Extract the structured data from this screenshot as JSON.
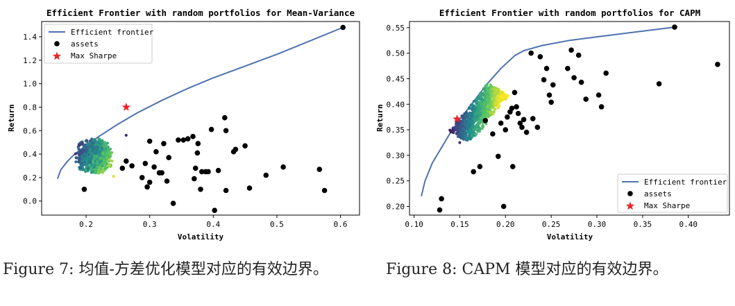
{
  "chart_data": [
    {
      "type": "scatter",
      "title": "Efficient Frontier with random portfolios for Mean-Variance",
      "xlabel": "Volatility",
      "ylabel": "Return",
      "xlim": [
        0.13,
        0.63
      ],
      "ylim": [
        -0.12,
        1.53
      ],
      "xticks": [
        "0.2",
        "0.3",
        "0.4",
        "0.5",
        "0.6"
      ],
      "yticks": [
        "0.0",
        "0.2",
        "0.4",
        "0.6",
        "0.8",
        "1.0",
        "1.2",
        "1.4"
      ],
      "legend_position": "top-left",
      "legend": [
        "Efficient frontier",
        "assets",
        "Max Sharpe"
      ],
      "frontier": {
        "name": "Efficient frontier",
        "color": "#4c72b0",
        "points": [
          [
            0.155,
            0.19
          ],
          [
            0.16,
            0.265
          ],
          [
            0.17,
            0.335
          ],
          [
            0.18,
            0.39
          ],
          [
            0.2,
            0.475
          ],
          [
            0.22,
            0.55
          ],
          [
            0.25,
            0.655
          ],
          [
            0.28,
            0.75
          ],
          [
            0.32,
            0.86
          ],
          [
            0.36,
            0.96
          ],
          [
            0.4,
            1.05
          ],
          [
            0.45,
            1.15
          ],
          [
            0.5,
            1.25
          ],
          [
            0.55,
            1.36
          ],
          [
            0.604,
            1.48
          ]
        ]
      },
      "cloud": {
        "name": "random portfolios",
        "xmin": 0.182,
        "xmax": 0.243,
        "ymin": 0.22,
        "ymax": 0.54,
        "extra": [
          [
            0.263,
            0.56
          ],
          [
            0.243,
            0.21
          ]
        ]
      },
      "max_sharpe": {
        "name": "Max Sharpe",
        "x": 0.263,
        "y": 0.8,
        "color": "#e8262a"
      },
      "assets": {
        "name": "assets",
        "points": [
          [
            0.604,
            1.48
          ],
          [
            0.197,
            0.1
          ],
          [
            0.257,
            0.28
          ],
          [
            0.263,
            0.34
          ],
          [
            0.272,
            0.3
          ],
          [
            0.288,
            0.2
          ],
          [
            0.293,
            0.32
          ],
          [
            0.296,
            0.12
          ],
          [
            0.3,
            0.16
          ],
          [
            0.3,
            0.51
          ],
          [
            0.307,
            0.29
          ],
          [
            0.31,
            0.42
          ],
          [
            0.315,
            0.24
          ],
          [
            0.319,
            0.24
          ],
          [
            0.322,
            0.49
          ],
          [
            0.327,
            0.17
          ],
          [
            0.33,
            0.37
          ],
          [
            0.337,
            -0.02
          ],
          [
            0.345,
            0.52
          ],
          [
            0.353,
            0.52
          ],
          [
            0.36,
            0.53
          ],
          [
            0.368,
            0.55
          ],
          [
            0.37,
            0.19
          ],
          [
            0.372,
            0.28
          ],
          [
            0.375,
            0.41
          ],
          [
            0.376,
            0.49
          ],
          [
            0.38,
            0.1
          ],
          [
            0.382,
            0.25
          ],
          [
            0.388,
            0.25
          ],
          [
            0.392,
            0.25
          ],
          [
            0.397,
            0.61
          ],
          [
            0.402,
            -0.08
          ],
          [
            0.408,
            0.26
          ],
          [
            0.418,
            0.71
          ],
          [
            0.42,
            0.6
          ],
          [
            0.42,
            0.09
          ],
          [
            0.432,
            0.42
          ],
          [
            0.435,
            0.44
          ],
          [
            0.45,
            0.47
          ],
          [
            0.457,
            0.11
          ],
          [
            0.483,
            0.22
          ],
          [
            0.51,
            0.29
          ],
          [
            0.567,
            0.27
          ],
          [
            0.575,
            0.09
          ]
        ]
      }
    },
    {
      "type": "scatter",
      "title": "Efficient Frontier with random portfolios for CAPM",
      "xlabel": "Volatility",
      "ylabel": "Return",
      "xlim": [
        0.095,
        0.445
      ],
      "ylim": [
        0.183,
        0.562
      ],
      "xticks": [
        "0.10",
        "0.15",
        "0.20",
        "0.25",
        "0.30",
        "0.35",
        "0.40"
      ],
      "yticks": [
        "0.20",
        "0.25",
        "0.30",
        "0.35",
        "0.40",
        "0.45",
        "0.50",
        "0.55"
      ],
      "legend_position": "bottom-right",
      "legend": [
        "Efficient frontier",
        "assets",
        "Max Sharpe"
      ],
      "frontier": {
        "name": "Efficient frontier",
        "color": "#4c72b0",
        "points": [
          [
            0.108,
            0.22
          ],
          [
            0.112,
            0.25
          ],
          [
            0.12,
            0.285
          ],
          [
            0.13,
            0.315
          ],
          [
            0.14,
            0.345
          ],
          [
            0.15,
            0.37
          ],
          [
            0.165,
            0.405
          ],
          [
            0.18,
            0.44
          ],
          [
            0.195,
            0.47
          ],
          [
            0.21,
            0.495
          ],
          [
            0.22,
            0.505
          ],
          [
            0.24,
            0.515
          ],
          [
            0.27,
            0.525
          ],
          [
            0.3,
            0.532
          ],
          [
            0.34,
            0.541
          ],
          [
            0.385,
            0.551
          ]
        ]
      },
      "cloud": {
        "name": "random portfolios",
        "lo": [
          0.15,
          0.335
        ],
        "hi": [
          0.192,
          0.43
        ],
        "width": 0.014,
        "extra": [
          [
            0.15,
            0.325
          ],
          [
            0.2,
            0.41
          ]
        ]
      },
      "max_sharpe": {
        "name": "Max Sharpe",
        "x": 0.147,
        "y": 0.371,
        "color": "#e8262a"
      },
      "assets": {
        "name": "assets",
        "points": [
          [
            0.385,
            0.551
          ],
          [
            0.128,
            0.193
          ],
          [
            0.13,
            0.215
          ],
          [
            0.165,
            0.268
          ],
          [
            0.172,
            0.278
          ],
          [
            0.178,
            0.368
          ],
          [
            0.186,
            0.342
          ],
          [
            0.192,
            0.298
          ],
          [
            0.195,
            0.363
          ],
          [
            0.198,
            0.2
          ],
          [
            0.2,
            0.35
          ],
          [
            0.202,
            0.375
          ],
          [
            0.205,
            0.385
          ],
          [
            0.207,
            0.392
          ],
          [
            0.208,
            0.278
          ],
          [
            0.21,
            0.423
          ],
          [
            0.212,
            0.395
          ],
          [
            0.214,
            0.382
          ],
          [
            0.216,
            0.363
          ],
          [
            0.218,
            0.355
          ],
          [
            0.22,
            0.37
          ],
          [
            0.223,
            0.345
          ],
          [
            0.228,
            0.5
          ],
          [
            0.23,
            0.372
          ],
          [
            0.235,
            0.355
          ],
          [
            0.238,
            0.493
          ],
          [
            0.242,
            0.448
          ],
          [
            0.245,
            0.47
          ],
          [
            0.248,
            0.418
          ],
          [
            0.25,
            0.404
          ],
          [
            0.252,
            0.438
          ],
          [
            0.268,
            0.47
          ],
          [
            0.272,
            0.506
          ],
          [
            0.275,
            0.452
          ],
          [
            0.28,
            0.496
          ],
          [
            0.283,
            0.443
          ],
          [
            0.288,
            0.41
          ],
          [
            0.302,
            0.418
          ],
          [
            0.305,
            0.395
          ],
          [
            0.31,
            0.461
          ],
          [
            0.368,
            0.44
          ],
          [
            0.432,
            0.478
          ]
        ]
      }
    }
  ],
  "captions": [
    "Figure 7: 均值-方差优化模型对应的有效边界。",
    "Figure 8: CAPM 模型对应的有效边界。"
  ]
}
